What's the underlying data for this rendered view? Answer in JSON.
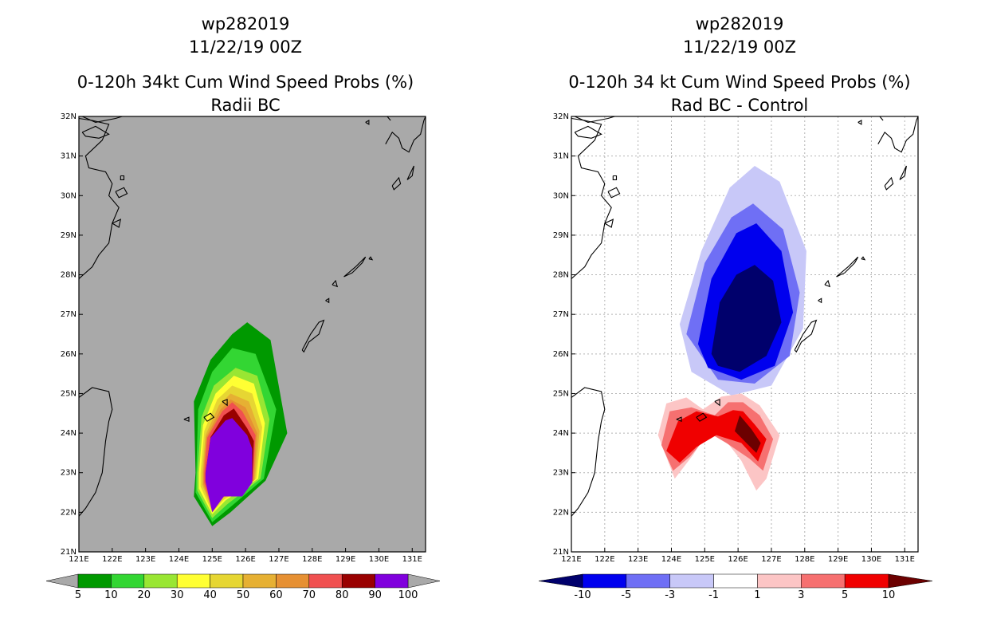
{
  "chart_data": [
    {
      "type": "contour-map",
      "title_lines": [
        "wp282019",
        "11/22/19 00Z",
        "0-120h 34kt Cum Wind Speed Probs (%)",
        "Radii BC"
      ],
      "x_ticks": [
        "121E",
        "122E",
        "123E",
        "124E",
        "125E",
        "126E",
        "127E",
        "128E",
        "129E",
        "130E",
        "131E"
      ],
      "y_ticks": [
        "21N",
        "22N",
        "23N",
        "24N",
        "25N",
        "26N",
        "27N",
        "28N",
        "29N",
        "30N",
        "31N",
        "32N"
      ],
      "lon_range": [
        121,
        131.4
      ],
      "lat_range": [
        21,
        32
      ],
      "background_color": "#a9a9a9",
      "colorbar": {
        "labels": [
          "5",
          "10",
          "20",
          "30",
          "40",
          "50",
          "60",
          "70",
          "80",
          "90",
          "100"
        ],
        "colors": [
          "#009900",
          "#33d633",
          "#99e633",
          "#ffff33",
          "#e6d633",
          "#e6b033",
          "#e69033",
          "#f05050",
          "#990000",
          "#8000dd"
        ],
        "end_colors": [
          "#a9a9a9",
          "#a9a9a9"
        ]
      },
      "contour_levels": [
        {
          "level": 5,
          "color": "#009900",
          "polygon": [
            [
              124.5,
              23.0
            ],
            [
              124.45,
              24.8
            ],
            [
              124.95,
              25.85
            ],
            [
              125.6,
              26.5
            ],
            [
              126.05,
              26.8
            ],
            [
              126.75,
              26.35
            ],
            [
              127.25,
              24.0
            ],
            [
              126.6,
              22.8
            ],
            [
              125.55,
              22.0
            ],
            [
              125.0,
              21.65
            ],
            [
              124.45,
              22.4
            ]
          ]
        },
        {
          "level": 10,
          "color": "#33d633",
          "polygon": [
            [
              124.52,
              23.0
            ],
            [
              124.58,
              24.6
            ],
            [
              125.0,
              25.55
            ],
            [
              125.6,
              26.15
            ],
            [
              126.3,
              26.0
            ],
            [
              126.92,
              24.6
            ],
            [
              126.55,
              22.85
            ],
            [
              125.5,
              22.1
            ],
            [
              125.0,
              21.75
            ],
            [
              124.5,
              22.5
            ]
          ]
        },
        {
          "level": 20,
          "color": "#99e633",
          "polygon": [
            [
              124.55,
              23.0
            ],
            [
              124.68,
              24.4
            ],
            [
              125.05,
              25.2
            ],
            [
              125.7,
              25.65
            ],
            [
              126.35,
              25.45
            ],
            [
              126.72,
              24.35
            ],
            [
              126.45,
              22.85
            ],
            [
              125.45,
              22.2
            ],
            [
              125.0,
              21.85
            ],
            [
              124.55,
              22.55
            ]
          ]
        },
        {
          "level": 30,
          "color": "#ffff33",
          "polygon": [
            [
              124.6,
              23.0
            ],
            [
              124.72,
              24.2
            ],
            [
              125.1,
              25.0
            ],
            [
              125.65,
              25.45
            ],
            [
              126.25,
              25.25
            ],
            [
              126.58,
              24.25
            ],
            [
              126.38,
              22.85
            ],
            [
              125.4,
              22.3
            ],
            [
              125.0,
              21.95
            ],
            [
              124.6,
              22.6
            ]
          ]
        },
        {
          "level": 40,
          "color": "#e6d633",
          "polygon": [
            [
              124.65,
              23.0
            ],
            [
              124.76,
              24.05
            ],
            [
              125.15,
              24.85
            ],
            [
              125.6,
              25.2
            ],
            [
              126.2,
              25.0
            ],
            [
              126.5,
              24.15
            ],
            [
              126.32,
              22.85
            ],
            [
              125.35,
              22.32
            ],
            [
              125.0,
              22.0
            ],
            [
              124.65,
              22.65
            ]
          ]
        },
        {
          "level": 50,
          "color": "#e6b033",
          "polygon": [
            [
              124.7,
              23.0
            ],
            [
              124.8,
              23.95
            ],
            [
              125.2,
              24.7
            ],
            [
              125.55,
              25.0
            ],
            [
              126.1,
              24.8
            ],
            [
              126.42,
              24.05
            ],
            [
              126.28,
              22.82
            ],
            [
              125.3,
              22.35
            ],
            [
              125.0,
              22.05
            ],
            [
              124.7,
              22.7
            ]
          ]
        },
        {
          "level": 60,
          "color": "#e69033",
          "polygon": [
            [
              124.73,
              23.0
            ],
            [
              124.82,
              23.9
            ],
            [
              125.25,
              24.6
            ],
            [
              125.55,
              24.85
            ],
            [
              126.0,
              24.65
            ],
            [
              126.35,
              24.0
            ],
            [
              126.25,
              22.8
            ],
            [
              125.25,
              22.38
            ],
            [
              125.0,
              22.08
            ],
            [
              124.73,
              22.72
            ]
          ]
        },
        {
          "level": 70,
          "color": "#f05050",
          "polygon": [
            [
              124.76,
              23.0
            ],
            [
              124.85,
              23.88
            ],
            [
              125.3,
              24.55
            ],
            [
              125.6,
              24.78
            ],
            [
              125.9,
              24.55
            ],
            [
              126.3,
              23.95
            ],
            [
              126.22,
              22.78
            ],
            [
              125.22,
              22.4
            ],
            [
              125.0,
              22.1
            ],
            [
              124.76,
              22.75
            ]
          ]
        },
        {
          "level": 80,
          "color": "#990000",
          "polygon": [
            [
              124.8,
              23.0
            ],
            [
              124.95,
              23.9
            ],
            [
              125.35,
              24.45
            ],
            [
              125.65,
              24.62
            ],
            [
              126.05,
              24.12
            ],
            [
              126.25,
              23.8
            ],
            [
              126.2,
              22.75
            ],
            [
              125.2,
              22.42
            ],
            [
              125.0,
              22.12
            ],
            [
              124.8,
              22.78
            ]
          ]
        },
        {
          "level": 90,
          "color": "#8000dd",
          "polygon": [
            [
              124.8,
              23.0
            ],
            [
              124.95,
              23.88
            ],
            [
              125.4,
              24.32
            ],
            [
              125.6,
              24.38
            ],
            [
              126.05,
              23.95
            ],
            [
              126.2,
              23.6
            ],
            [
              126.2,
              22.75
            ],
            [
              125.9,
              22.4
            ],
            [
              125.35,
              22.4
            ],
            [
              125.0,
              22.0
            ],
            [
              124.8,
              22.78
            ]
          ]
        }
      ]
    },
    {
      "type": "contour-map",
      "title_lines": [
        "wp282019",
        "11/22/19 00Z",
        "0-120h 34 kt Cum Wind Speed Probs (%)",
        "Rad BC - Control"
      ],
      "x_ticks": [
        "121E",
        "122E",
        "123E",
        "124E",
        "125E",
        "126E",
        "127E",
        "128E",
        "129E",
        "130E",
        "131E"
      ],
      "y_ticks": [
        "21N",
        "22N",
        "23N",
        "24N",
        "25N",
        "26N",
        "27N",
        "28N",
        "29N",
        "30N",
        "31N",
        "32N"
      ],
      "lon_range": [
        121,
        131.4
      ],
      "lat_range": [
        21,
        32
      ],
      "background_color": "#ffffff",
      "colorbar": {
        "labels": [
          "-10",
          "-5",
          "-3",
          "-1",
          "1",
          "3",
          "5",
          "10"
        ],
        "colors": [
          "#0000ee",
          "#6f6ff5",
          "#c8c8f8",
          "#ffffff",
          "#fcc5c5",
          "#f67070",
          "#f00000"
        ],
        "end_colors": [
          "#00006c",
          "#6c0000"
        ]
      },
      "contour_levels": [
        {
          "level": -1,
          "color": "#c8c8f8",
          "polygon": [
            [
              124.25,
              26.75
            ],
            [
              124.9,
              28.6
            ],
            [
              125.75,
              30.2
            ],
            [
              126.5,
              30.75
            ],
            [
              127.25,
              30.35
            ],
            [
              128.05,
              28.6
            ],
            [
              127.95,
              26.65
            ],
            [
              127.0,
              25.2
            ],
            [
              125.8,
              24.95
            ],
            [
              124.6,
              25.55
            ]
          ]
        },
        {
          "level": -3,
          "color": "#6f6ff5",
          "polygon": [
            [
              124.45,
              26.5
            ],
            [
              125.0,
              28.3
            ],
            [
              125.8,
              29.45
            ],
            [
              126.45,
              29.8
            ],
            [
              127.35,
              29.15
            ],
            [
              127.85,
              27.55
            ],
            [
              127.55,
              25.95
            ],
            [
              126.5,
              25.25
            ],
            [
              125.4,
              25.35
            ]
          ]
        },
        {
          "level": -5,
          "color": "#0000ee",
          "polygon": [
            [
              124.8,
              26.25
            ],
            [
              125.2,
              27.9
            ],
            [
              125.95,
              29.05
            ],
            [
              126.55,
              29.3
            ],
            [
              127.3,
              28.6
            ],
            [
              127.65,
              27.05
            ],
            [
              127.1,
              25.7
            ],
            [
              126.1,
              25.35
            ],
            [
              125.1,
              25.65
            ]
          ]
        },
        {
          "level": -10,
          "color": "#00006c",
          "polygon": [
            [
              125.2,
              26.0
            ],
            [
              125.45,
              27.3
            ],
            [
              125.95,
              28.0
            ],
            [
              126.5,
              28.25
            ],
            [
              127.05,
              27.85
            ],
            [
              127.3,
              26.8
            ],
            [
              126.85,
              25.95
            ],
            [
              126.05,
              25.55
            ],
            [
              125.4,
              25.7
            ]
          ]
        },
        {
          "level": 1,
          "color": "#fcc5c5",
          "polygon": [
            [
              123.6,
              23.95
            ],
            [
              123.85,
              24.75
            ],
            [
              124.45,
              24.9
            ],
            [
              124.95,
              24.6
            ],
            [
              125.5,
              24.92
            ],
            [
              126.1,
              25.0
            ],
            [
              126.65,
              24.7
            ],
            [
              127.25,
              23.95
            ],
            [
              126.85,
              22.85
            ],
            [
              126.55,
              22.55
            ],
            [
              126.1,
              23.3
            ],
            [
              125.55,
              23.9
            ],
            [
              125.15,
              24.1
            ],
            [
              124.65,
              23.45
            ],
            [
              124.1,
              22.85
            ]
          ]
        },
        {
          "level": 3,
          "color": "#f67070",
          "polygon": [
            [
              123.7,
              23.7
            ],
            [
              123.95,
              24.55
            ],
            [
              124.6,
              24.65
            ],
            [
              125.3,
              24.45
            ],
            [
              125.7,
              24.78
            ],
            [
              126.15,
              24.78
            ],
            [
              126.65,
              24.45
            ],
            [
              127.05,
              23.85
            ],
            [
              126.75,
              23.05
            ],
            [
              126.35,
              23.35
            ],
            [
              125.65,
              23.75
            ],
            [
              125.15,
              24.0
            ],
            [
              124.55,
              23.4
            ],
            [
              124.05,
              23.05
            ]
          ]
        },
        {
          "level": 5,
          "color": "#f00000",
          "polygon": [
            [
              123.85,
              23.55
            ],
            [
              124.2,
              24.3
            ],
            [
              124.75,
              24.55
            ],
            [
              125.4,
              24.42
            ],
            [
              125.85,
              24.58
            ],
            [
              126.15,
              24.55
            ],
            [
              126.5,
              24.22
            ],
            [
              126.85,
              23.85
            ],
            [
              126.6,
              23.28
            ],
            [
              126.1,
              23.75
            ],
            [
              125.35,
              23.95
            ],
            [
              124.75,
              23.65
            ],
            [
              124.25,
              23.25
            ]
          ]
        },
        {
          "level": 10,
          "color": "#6c0000",
          "polygon": [
            [
              125.9,
              24.05
            ],
            [
              126.05,
              24.45
            ],
            [
              126.4,
              24.1
            ],
            [
              126.68,
              23.75
            ],
            [
              126.55,
              23.5
            ],
            [
              126.25,
              23.75
            ]
          ]
        }
      ]
    }
  ]
}
